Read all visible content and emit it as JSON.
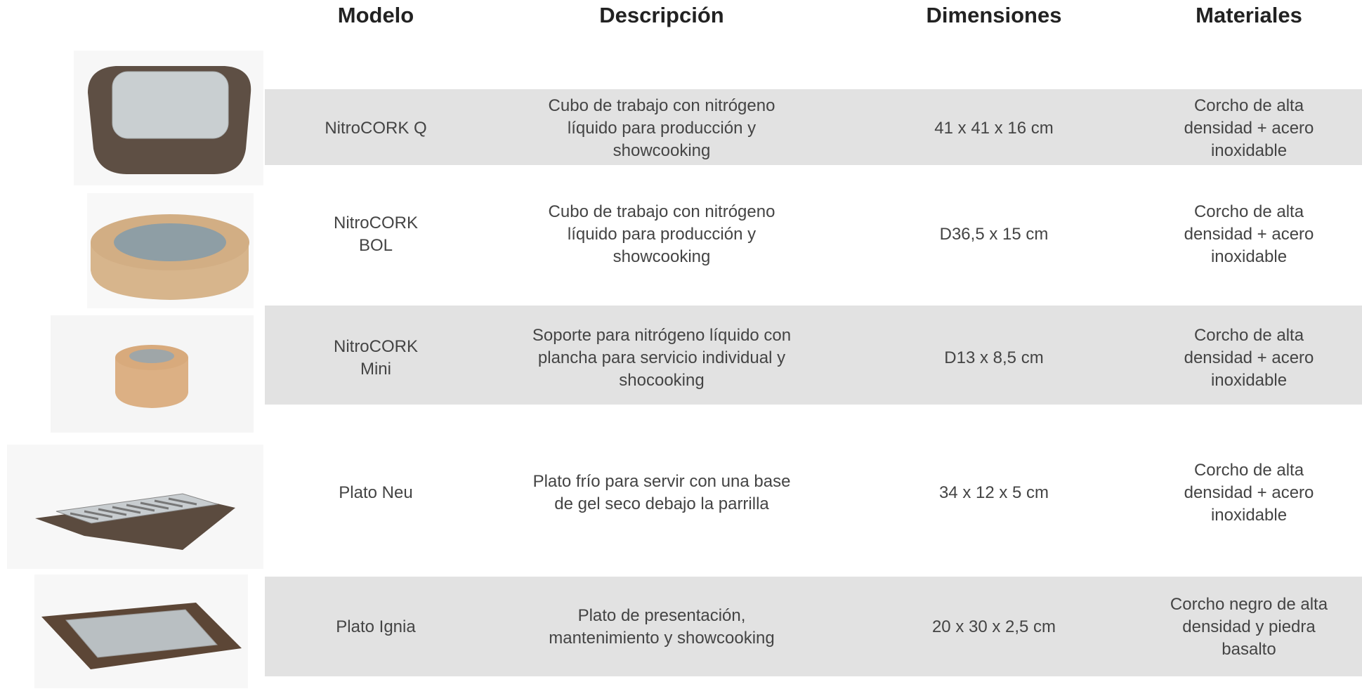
{
  "table": {
    "header": [
      "Modelo",
      "Descripción",
      "Dimensiones",
      "Materiales"
    ],
    "rows": [
      [
        "NitroCORK Q",
        "Cubo de trabajo con nitrógeno líquido para producción y showcooking",
        "41 x  41 x 16 cm",
        "Corcho de alta densidad + acero inoxidable"
      ],
      [
        "NitroCORK BOL",
        "Cubo de trabajo con nitrógeno líquido para producción y showcooking",
        "D36,5 x 15 cm",
        "Corcho de alta densidad + acero inoxidable"
      ],
      [
        "NitroCORK Mini",
        "Soporte para nitrógeno líquido con plancha para servicio individual y shocooking",
        "D13 x 8,5 cm",
        "Corcho de alta densidad + acero inoxidable"
      ],
      [
        "Plato Neu",
        "Plato frío para servir con una base de gel seco debajo la parrilla",
        "34 x 12 x 5 cm",
        "Corcho de alta densidad + acero inoxidable"
      ],
      [
        "Plato Ignia",
        "Plato de presentación, mantenimiento y showcooking",
        "20 x 30 x 2,5 cm",
        "Corcho negro de alta densidad y piedra basalto"
      ]
    ]
  }
}
